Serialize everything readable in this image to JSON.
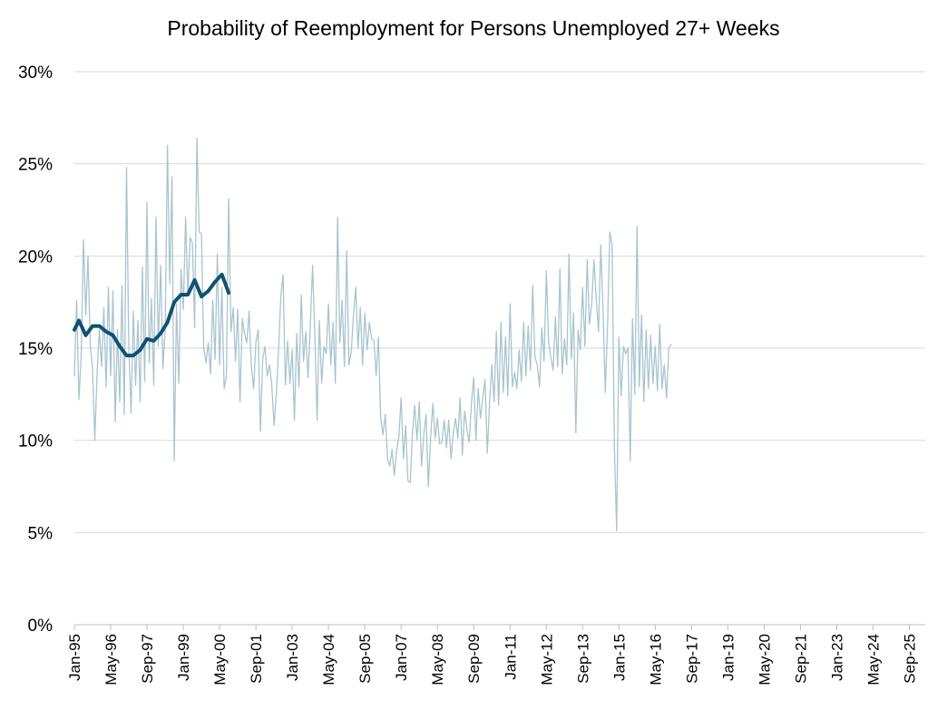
{
  "chart_data": {
    "type": "line",
    "title": "Probability of Reemployment for Persons Unemployed 27+ Weeks",
    "xlabel": "",
    "ylabel": "",
    "ylim": [
      0,
      30
    ],
    "y_ticks": [
      "0%",
      "5%",
      "10%",
      "15%",
      "20%",
      "25%",
      "30%"
    ],
    "x_ticks": [
      "Jan-95",
      "May-96",
      "Sep-97",
      "Jan-99",
      "May-00",
      "Sep-01",
      "Jan-03",
      "May-04",
      "Sep-05",
      "Jan-07",
      "May-08",
      "Sep-09",
      "Jan-11",
      "May-12",
      "Sep-13",
      "Jan-15",
      "May-16",
      "Sep-17",
      "Jan-19",
      "May-20",
      "Sep-21",
      "Jan-23",
      "May-24",
      "Sep-25"
    ],
    "x_start": "1995-01",
    "x_end": "2026-04",
    "grid": true,
    "legend": "none",
    "colors": {
      "monthly": "#a9c4cf",
      "smoothed": "#0f5273",
      "grid": "#d9d9d9"
    },
    "series": [
      {
        "style": "thin",
        "points": [
          [
            "1995-01",
            13.5
          ],
          [
            "1995-02",
            17.6
          ],
          [
            "1995-03",
            12.2
          ],
          [
            "1995-04",
            14.6
          ],
          [
            "1995-05",
            20.9
          ],
          [
            "1995-06",
            16.8
          ],
          [
            "1995-07",
            20.0
          ],
          [
            "1995-08",
            15.2
          ],
          [
            "1995-09",
            13.9
          ],
          [
            "1995-10",
            10.0
          ],
          [
            "1995-11",
            13.6
          ],
          [
            "1995-12",
            16.0
          ],
          [
            "1996-01",
            14.0
          ],
          [
            "1996-02",
            17.2
          ],
          [
            "1996-03",
            12.9
          ],
          [
            "1996-04",
            18.3
          ],
          [
            "1996-05",
            13.5
          ],
          [
            "1996-06",
            18.1
          ],
          [
            "1996-07",
            11.0
          ],
          [
            "1996-08",
            16.0
          ],
          [
            "1996-09",
            12.1
          ],
          [
            "1996-10",
            18.4
          ],
          [
            "1996-11",
            11.4
          ],
          [
            "1996-12",
            24.8
          ],
          [
            "1997-01",
            15.0
          ],
          [
            "1997-02",
            11.5
          ],
          [
            "1997-03",
            17.0
          ],
          [
            "1997-04",
            13.0
          ],
          [
            "1997-05",
            16.5
          ],
          [
            "1997-06",
            12.1
          ],
          [
            "1997-07",
            19.4
          ],
          [
            "1997-08",
            13.2
          ],
          [
            "1997-09",
            22.9
          ],
          [
            "1997-10",
            14.2
          ],
          [
            "1997-11",
            17.7
          ],
          [
            "1997-12",
            13.0
          ],
          [
            "1998-01",
            22.1
          ],
          [
            "1998-02",
            15.1
          ],
          [
            "1998-03",
            19.5
          ],
          [
            "1998-04",
            13.9
          ],
          [
            "1998-05",
            16.0
          ],
          [
            "1998-06",
            26.0
          ],
          [
            "1998-07",
            18.5
          ],
          [
            "1998-08",
            24.3
          ],
          [
            "1998-09",
            8.9
          ],
          [
            "1998-10",
            17.4
          ],
          [
            "1998-11",
            13.1
          ],
          [
            "1998-12",
            19.3
          ],
          [
            "1999-01",
            17.1
          ],
          [
            "1999-02",
            22.1
          ],
          [
            "1999-03",
            17.9
          ],
          [
            "1999-04",
            21.0
          ],
          [
            "1999-05",
            20.7
          ],
          [
            "1999-06",
            16.1
          ],
          [
            "1999-07",
            26.4
          ],
          [
            "1999-08",
            21.3
          ],
          [
            "1999-09",
            21.2
          ],
          [
            "1999-10",
            15.0
          ],
          [
            "1999-11",
            14.2
          ],
          [
            "1999-12",
            15.3
          ],
          [
            "2000-01",
            13.6
          ],
          [
            "2000-02",
            17.6
          ],
          [
            "2000-03",
            14.4
          ],
          [
            "2000-04",
            20.1
          ],
          [
            "2000-05",
            14.1
          ],
          [
            "2000-06",
            18.3
          ],
          [
            "2000-07",
            12.8
          ],
          [
            "2000-08",
            13.5
          ],
          [
            "2000-09",
            23.1
          ],
          [
            "2000-10",
            15.9
          ],
          [
            "2000-11",
            17.2
          ],
          [
            "2000-12",
            14.3
          ],
          [
            "2001-01",
            17.1
          ],
          [
            "2001-02",
            12.1
          ],
          [
            "2001-03",
            16.6
          ],
          [
            "2001-04",
            15.8
          ],
          [
            "2001-05",
            15.3
          ],
          [
            "2001-06",
            17.0
          ],
          [
            "2001-07",
            14.0
          ],
          [
            "2001-08",
            12.8
          ],
          [
            "2001-09",
            15.3
          ],
          [
            "2001-10",
            16.0
          ],
          [
            "2001-11",
            10.5
          ],
          [
            "2001-12",
            14.4
          ],
          [
            "2002-01",
            15.1
          ],
          [
            "2002-02",
            13.5
          ],
          [
            "2002-03",
            14.1
          ],
          [
            "2002-04",
            13.0
          ],
          [
            "2002-05",
            10.8
          ],
          [
            "2002-06",
            12.5
          ],
          [
            "2002-07",
            14.9
          ],
          [
            "2002-08",
            17.8
          ],
          [
            "2002-09",
            19.0
          ],
          [
            "2002-10",
            13.0
          ],
          [
            "2002-11",
            15.4
          ],
          [
            "2002-12",
            13.1
          ],
          [
            "2003-01",
            14.9
          ],
          [
            "2003-02",
            11.1
          ],
          [
            "2003-03",
            15.8
          ],
          [
            "2003-04",
            12.9
          ],
          [
            "2003-05",
            17.9
          ],
          [
            "2003-06",
            14.3
          ],
          [
            "2003-07",
            15.9
          ],
          [
            "2003-08",
            13.4
          ],
          [
            "2003-09",
            16.2
          ],
          [
            "2003-10",
            19.5
          ],
          [
            "2003-11",
            15.7
          ],
          [
            "2003-12",
            11.1
          ],
          [
            "2004-01",
            16.5
          ],
          [
            "2004-02",
            13.1
          ],
          [
            "2004-03",
            15.1
          ],
          [
            "2004-04",
            14.7
          ],
          [
            "2004-05",
            17.4
          ],
          [
            "2004-06",
            14.1
          ],
          [
            "2004-07",
            16.4
          ],
          [
            "2004-08",
            13.1
          ],
          [
            "2004-09",
            22.1
          ],
          [
            "2004-10",
            15.3
          ],
          [
            "2004-11",
            17.6
          ],
          [
            "2004-12",
            14.0
          ],
          [
            "2005-01",
            20.3
          ],
          [
            "2005-02",
            14.1
          ],
          [
            "2005-03",
            14.8
          ],
          [
            "2005-04",
            16.8
          ],
          [
            "2005-05",
            18.3
          ],
          [
            "2005-06",
            15.0
          ],
          [
            "2005-07",
            17.2
          ],
          [
            "2005-08",
            14.1
          ],
          [
            "2005-09",
            16.9
          ],
          [
            "2005-10",
            14.9
          ],
          [
            "2005-11",
            16.4
          ],
          [
            "2005-12",
            15.5
          ],
          [
            "2006-01",
            15.4
          ],
          [
            "2006-02",
            13.5
          ],
          [
            "2006-03",
            15.6
          ],
          [
            "2006-04",
            11.2
          ],
          [
            "2006-05",
            10.3
          ],
          [
            "2006-06",
            11.4
          ],
          [
            "2006-07",
            9.0
          ],
          [
            "2006-08",
            8.6
          ],
          [
            "2006-09",
            9.5
          ],
          [
            "2006-10",
            8.1
          ],
          [
            "2006-11",
            9.4
          ],
          [
            "2006-12",
            10.2
          ],
          [
            "2007-01",
            12.3
          ],
          [
            "2007-02",
            9.0
          ],
          [
            "2007-03",
            10.8
          ],
          [
            "2007-04",
            7.8
          ],
          [
            "2007-05",
            7.7
          ],
          [
            "2007-06",
            10.4
          ],
          [
            "2007-07",
            11.9
          ],
          [
            "2007-08",
            10.0
          ],
          [
            "2007-09",
            12.1
          ],
          [
            "2007-10",
            8.6
          ],
          [
            "2007-11",
            10.3
          ],
          [
            "2007-12",
            11.4
          ],
          [
            "2008-01",
            7.5
          ],
          [
            "2008-02",
            10.1
          ],
          [
            "2008-03",
            12.0
          ],
          [
            "2008-04",
            10.1
          ],
          [
            "2008-05",
            11.2
          ],
          [
            "2008-06",
            9.8
          ],
          [
            "2008-07",
            9.9
          ],
          [
            "2008-08",
            11.1
          ],
          [
            "2008-09",
            9.6
          ],
          [
            "2008-10",
            11.1
          ],
          [
            "2008-11",
            9.0
          ],
          [
            "2008-12",
            10.4
          ],
          [
            "2009-01",
            11.2
          ],
          [
            "2009-02",
            10.1
          ],
          [
            "2009-03",
            12.3
          ],
          [
            "2009-04",
            9.2
          ],
          [
            "2009-05",
            11.6
          ],
          [
            "2009-06",
            10.6
          ],
          [
            "2009-07",
            9.9
          ],
          [
            "2009-08",
            12.0
          ],
          [
            "2009-09",
            13.4
          ],
          [
            "2009-10",
            10.0
          ],
          [
            "2009-11",
            12.8
          ],
          [
            "2009-12",
            11.2
          ],
          [
            "2010-01",
            12.3
          ],
          [
            "2010-02",
            13.3
          ],
          [
            "2010-03",
            9.3
          ],
          [
            "2010-04",
            12.0
          ],
          [
            "2010-05",
            14.1
          ],
          [
            "2010-06",
            12.1
          ],
          [
            "2010-07",
            15.9
          ],
          [
            "2010-08",
            11.9
          ],
          [
            "2010-09",
            16.4
          ],
          [
            "2010-10",
            12.6
          ],
          [
            "2010-11",
            15.6
          ],
          [
            "2010-12",
            12.4
          ],
          [
            "2011-01",
            17.4
          ],
          [
            "2011-02",
            12.9
          ],
          [
            "2011-03",
            13.7
          ],
          [
            "2011-04",
            12.8
          ],
          [
            "2011-05",
            14.9
          ],
          [
            "2011-06",
            13.2
          ],
          [
            "2011-07",
            16.4
          ],
          [
            "2011-08",
            13.5
          ],
          [
            "2011-09",
            16.2
          ],
          [
            "2011-10",
            13.8
          ],
          [
            "2011-11",
            18.4
          ],
          [
            "2011-12",
            14.5
          ],
          [
            "2012-01",
            14.1
          ],
          [
            "2012-02",
            12.9
          ],
          [
            "2012-03",
            16.1
          ],
          [
            "2012-04",
            14.3
          ],
          [
            "2012-05",
            19.2
          ],
          [
            "2012-06",
            15.3
          ],
          [
            "2012-07",
            14.5
          ],
          [
            "2012-08",
            13.8
          ],
          [
            "2012-09",
            16.7
          ],
          [
            "2012-10",
            14.0
          ],
          [
            "2012-11",
            19.3
          ],
          [
            "2012-12",
            13.6
          ],
          [
            "2013-01",
            15.5
          ],
          [
            "2013-02",
            14.1
          ],
          [
            "2013-03",
            20.1
          ],
          [
            "2013-04",
            14.4
          ],
          [
            "2013-05",
            16.9
          ],
          [
            "2013-06",
            10.4
          ],
          [
            "2013-07",
            16.0
          ],
          [
            "2013-08",
            14.9
          ],
          [
            "2013-09",
            18.3
          ],
          [
            "2013-10",
            15.1
          ],
          [
            "2013-11",
            19.8
          ],
          [
            "2013-12",
            16.3
          ],
          [
            "2014-01",
            17.4
          ],
          [
            "2014-02",
            19.8
          ],
          [
            "2014-03",
            17.7
          ],
          [
            "2014-04",
            15.9
          ],
          [
            "2014-05",
            20.6
          ],
          [
            "2014-06",
            17.1
          ],
          [
            "2014-07",
            12.6
          ],
          [
            "2014-08",
            16.3
          ],
          [
            "2014-09",
            21.3
          ],
          [
            "2014-10",
            20.6
          ],
          [
            "2014-11",
            9.7
          ],
          [
            "2014-12",
            5.1
          ],
          [
            "2015-01",
            15.6
          ],
          [
            "2015-02",
            12.4
          ],
          [
            "2015-03",
            15.1
          ],
          [
            "2015-04",
            14.7
          ],
          [
            "2015-05",
            15.0
          ],
          [
            "2015-06",
            8.9
          ],
          [
            "2015-07",
            16.6
          ],
          [
            "2015-08",
            12.5
          ],
          [
            "2015-09",
            21.6
          ],
          [
            "2015-10",
            12.9
          ],
          [
            "2015-11",
            16.8
          ],
          [
            "2015-12",
            12.1
          ],
          [
            "2016-01",
            16.0
          ],
          [
            "2016-02",
            12.8
          ],
          [
            "2016-03",
            15.7
          ],
          [
            "2016-04",
            13.1
          ],
          [
            "2016-05",
            15.1
          ],
          [
            "2016-06",
            12.7
          ],
          [
            "2016-07",
            16.3
          ],
          [
            "2016-08",
            12.8
          ],
          [
            "2016-09",
            14.1
          ],
          [
            "2016-10",
            12.3
          ],
          [
            "2016-11",
            15.0
          ],
          [
            "2016-12",
            15.2
          ]
        ]
      },
      {
        "style": "thick",
        "points": [
          [
            "1995-01",
            16.0
          ],
          [
            "1995-03",
            16.5
          ],
          [
            "1995-06",
            15.7
          ],
          [
            "1995-09",
            16.2
          ],
          [
            "1995-12",
            16.2
          ],
          [
            "1996-03",
            15.9
          ],
          [
            "1996-06",
            15.7
          ],
          [
            "1996-09",
            15.1
          ],
          [
            "1996-12",
            14.6
          ],
          [
            "1997-03",
            14.6
          ],
          [
            "1997-06",
            14.9
          ],
          [
            "1997-09",
            15.5
          ],
          [
            "1997-12",
            15.4
          ],
          [
            "1998-03",
            15.8
          ],
          [
            "1998-06",
            16.4
          ],
          [
            "1998-09",
            17.5
          ],
          [
            "1998-12",
            17.9
          ],
          [
            "1999-03",
            17.9
          ],
          [
            "1999-06",
            18.7
          ],
          [
            "1999-09",
            17.8
          ],
          [
            "1999-12",
            18.1
          ],
          [
            "2000-03",
            18.6
          ],
          [
            "2000-06",
            19.0
          ],
          [
            "2000-09",
            18.0
          ]
        ]
      }
    ]
  }
}
